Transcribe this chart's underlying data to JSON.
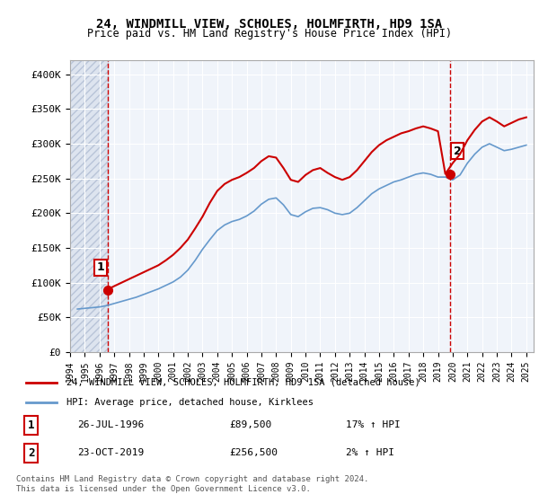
{
  "title": "24, WINDMILL VIEW, SCHOLES, HOLMFIRTH, HD9 1SA",
  "subtitle": "Price paid vs. HM Land Registry's House Price Index (HPI)",
  "price_label": "24, WINDMILL VIEW, SCHOLES, HOLMFIRTH, HD9 1SA (detached house)",
  "hpi_label": "HPI: Average price, detached house, Kirklees",
  "sale1_date": "26-JUL-1996",
  "sale1_price": 89500,
  "sale1_hpi": "17% ↑ HPI",
  "sale2_date": "23-OCT-2019",
  "sale2_price": 256500,
  "sale2_hpi": "2% ↑ HPI",
  "footer": "Contains HM Land Registry data © Crown copyright and database right 2024.\nThis data is licensed under the Open Government Licence v3.0.",
  "price_color": "#cc0000",
  "hpi_color": "#6699cc",
  "background_hatch_color": "#d0d8e8",
  "ylim": [
    0,
    420000
  ],
  "yticks": [
    0,
    50000,
    100000,
    150000,
    200000,
    250000,
    300000,
    350000,
    400000
  ],
  "ytick_labels": [
    "£0",
    "£50K",
    "£100K",
    "£150K",
    "£200K",
    "£250K",
    "£300K",
    "£350K",
    "£400K"
  ],
  "sale1_x": 1996.57,
  "sale2_x": 2019.81,
  "hpi_years": [
    1994.5,
    1995.0,
    1995.5,
    1996.0,
    1996.5,
    1997.0,
    1997.5,
    1998.0,
    1998.5,
    1999.0,
    1999.5,
    2000.0,
    2000.5,
    2001.0,
    2001.5,
    2002.0,
    2002.5,
    2003.0,
    2003.5,
    2004.0,
    2004.5,
    2005.0,
    2005.5,
    2006.0,
    2006.5,
    2007.0,
    2007.5,
    2008.0,
    2008.5,
    2009.0,
    2009.5,
    2010.0,
    2010.5,
    2011.0,
    2011.5,
    2012.0,
    2012.5,
    2013.0,
    2013.5,
    2014.0,
    2014.5,
    2015.0,
    2015.5,
    2016.0,
    2016.5,
    2017.0,
    2017.5,
    2018.0,
    2018.5,
    2019.0,
    2019.5,
    2020.0,
    2020.5,
    2021.0,
    2021.5,
    2022.0,
    2022.5,
    2023.0,
    2023.5,
    2024.0,
    2024.5,
    2025.0
  ],
  "hpi_values": [
    62000,
    63000,
    64000,
    65000,
    67000,
    70000,
    73000,
    76000,
    79000,
    83000,
    87000,
    91000,
    96000,
    101000,
    108000,
    118000,
    132000,
    148000,
    162000,
    175000,
    183000,
    188000,
    191000,
    196000,
    203000,
    213000,
    220000,
    222000,
    212000,
    198000,
    195000,
    202000,
    207000,
    208000,
    205000,
    200000,
    198000,
    200000,
    208000,
    218000,
    228000,
    235000,
    240000,
    245000,
    248000,
    252000,
    256000,
    258000,
    256000,
    252000,
    252000,
    248000,
    255000,
    272000,
    285000,
    295000,
    300000,
    295000,
    290000,
    292000,
    295000,
    298000
  ],
  "price_years": [
    1994.5,
    1995.0,
    1995.5,
    1996.0,
    1996.5,
    1997.0,
    1997.5,
    1998.0,
    1998.5,
    1999.0,
    1999.5,
    2000.0,
    2000.5,
    2001.0,
    2001.5,
    2002.0,
    2002.5,
    2003.0,
    2003.5,
    2004.0,
    2004.5,
    2005.0,
    2005.5,
    2006.0,
    2006.5,
    2007.0,
    2007.5,
    2008.0,
    2008.5,
    2009.0,
    2009.5,
    2010.0,
    2010.5,
    2011.0,
    2011.5,
    2012.0,
    2012.5,
    2013.0,
    2013.5,
    2014.0,
    2014.5,
    2015.0,
    2015.5,
    2016.0,
    2016.5,
    2017.0,
    2017.5,
    2018.0,
    2018.5,
    2019.0,
    2019.5,
    2020.0,
    2020.5,
    2021.0,
    2021.5,
    2022.0,
    2022.5,
    2023.0,
    2023.5,
    2024.0,
    2024.5,
    2025.0
  ],
  "price_values": [
    null,
    null,
    null,
    null,
    89500,
    95000,
    100000,
    105000,
    110000,
    115000,
    120000,
    125000,
    132000,
    140000,
    150000,
    162000,
    178000,
    195000,
    215000,
    232000,
    242000,
    248000,
    252000,
    258000,
    265000,
    275000,
    282000,
    280000,
    265000,
    248000,
    245000,
    255000,
    262000,
    265000,
    258000,
    252000,
    248000,
    252000,
    262000,
    275000,
    288000,
    298000,
    305000,
    310000,
    315000,
    318000,
    322000,
    325000,
    322000,
    318000,
    256500,
    272000,
    285000,
    305000,
    320000,
    332000,
    338000,
    332000,
    325000,
    330000,
    335000,
    338000
  ],
  "xmin": 1994.0,
  "xmax": 2025.5,
  "xtick_years": [
    1994,
    1995,
    1996,
    1997,
    1998,
    1999,
    2000,
    2001,
    2002,
    2003,
    2004,
    2005,
    2006,
    2007,
    2008,
    2009,
    2010,
    2011,
    2012,
    2013,
    2014,
    2015,
    2016,
    2017,
    2018,
    2019,
    2020,
    2021,
    2022,
    2023,
    2024,
    2025
  ]
}
